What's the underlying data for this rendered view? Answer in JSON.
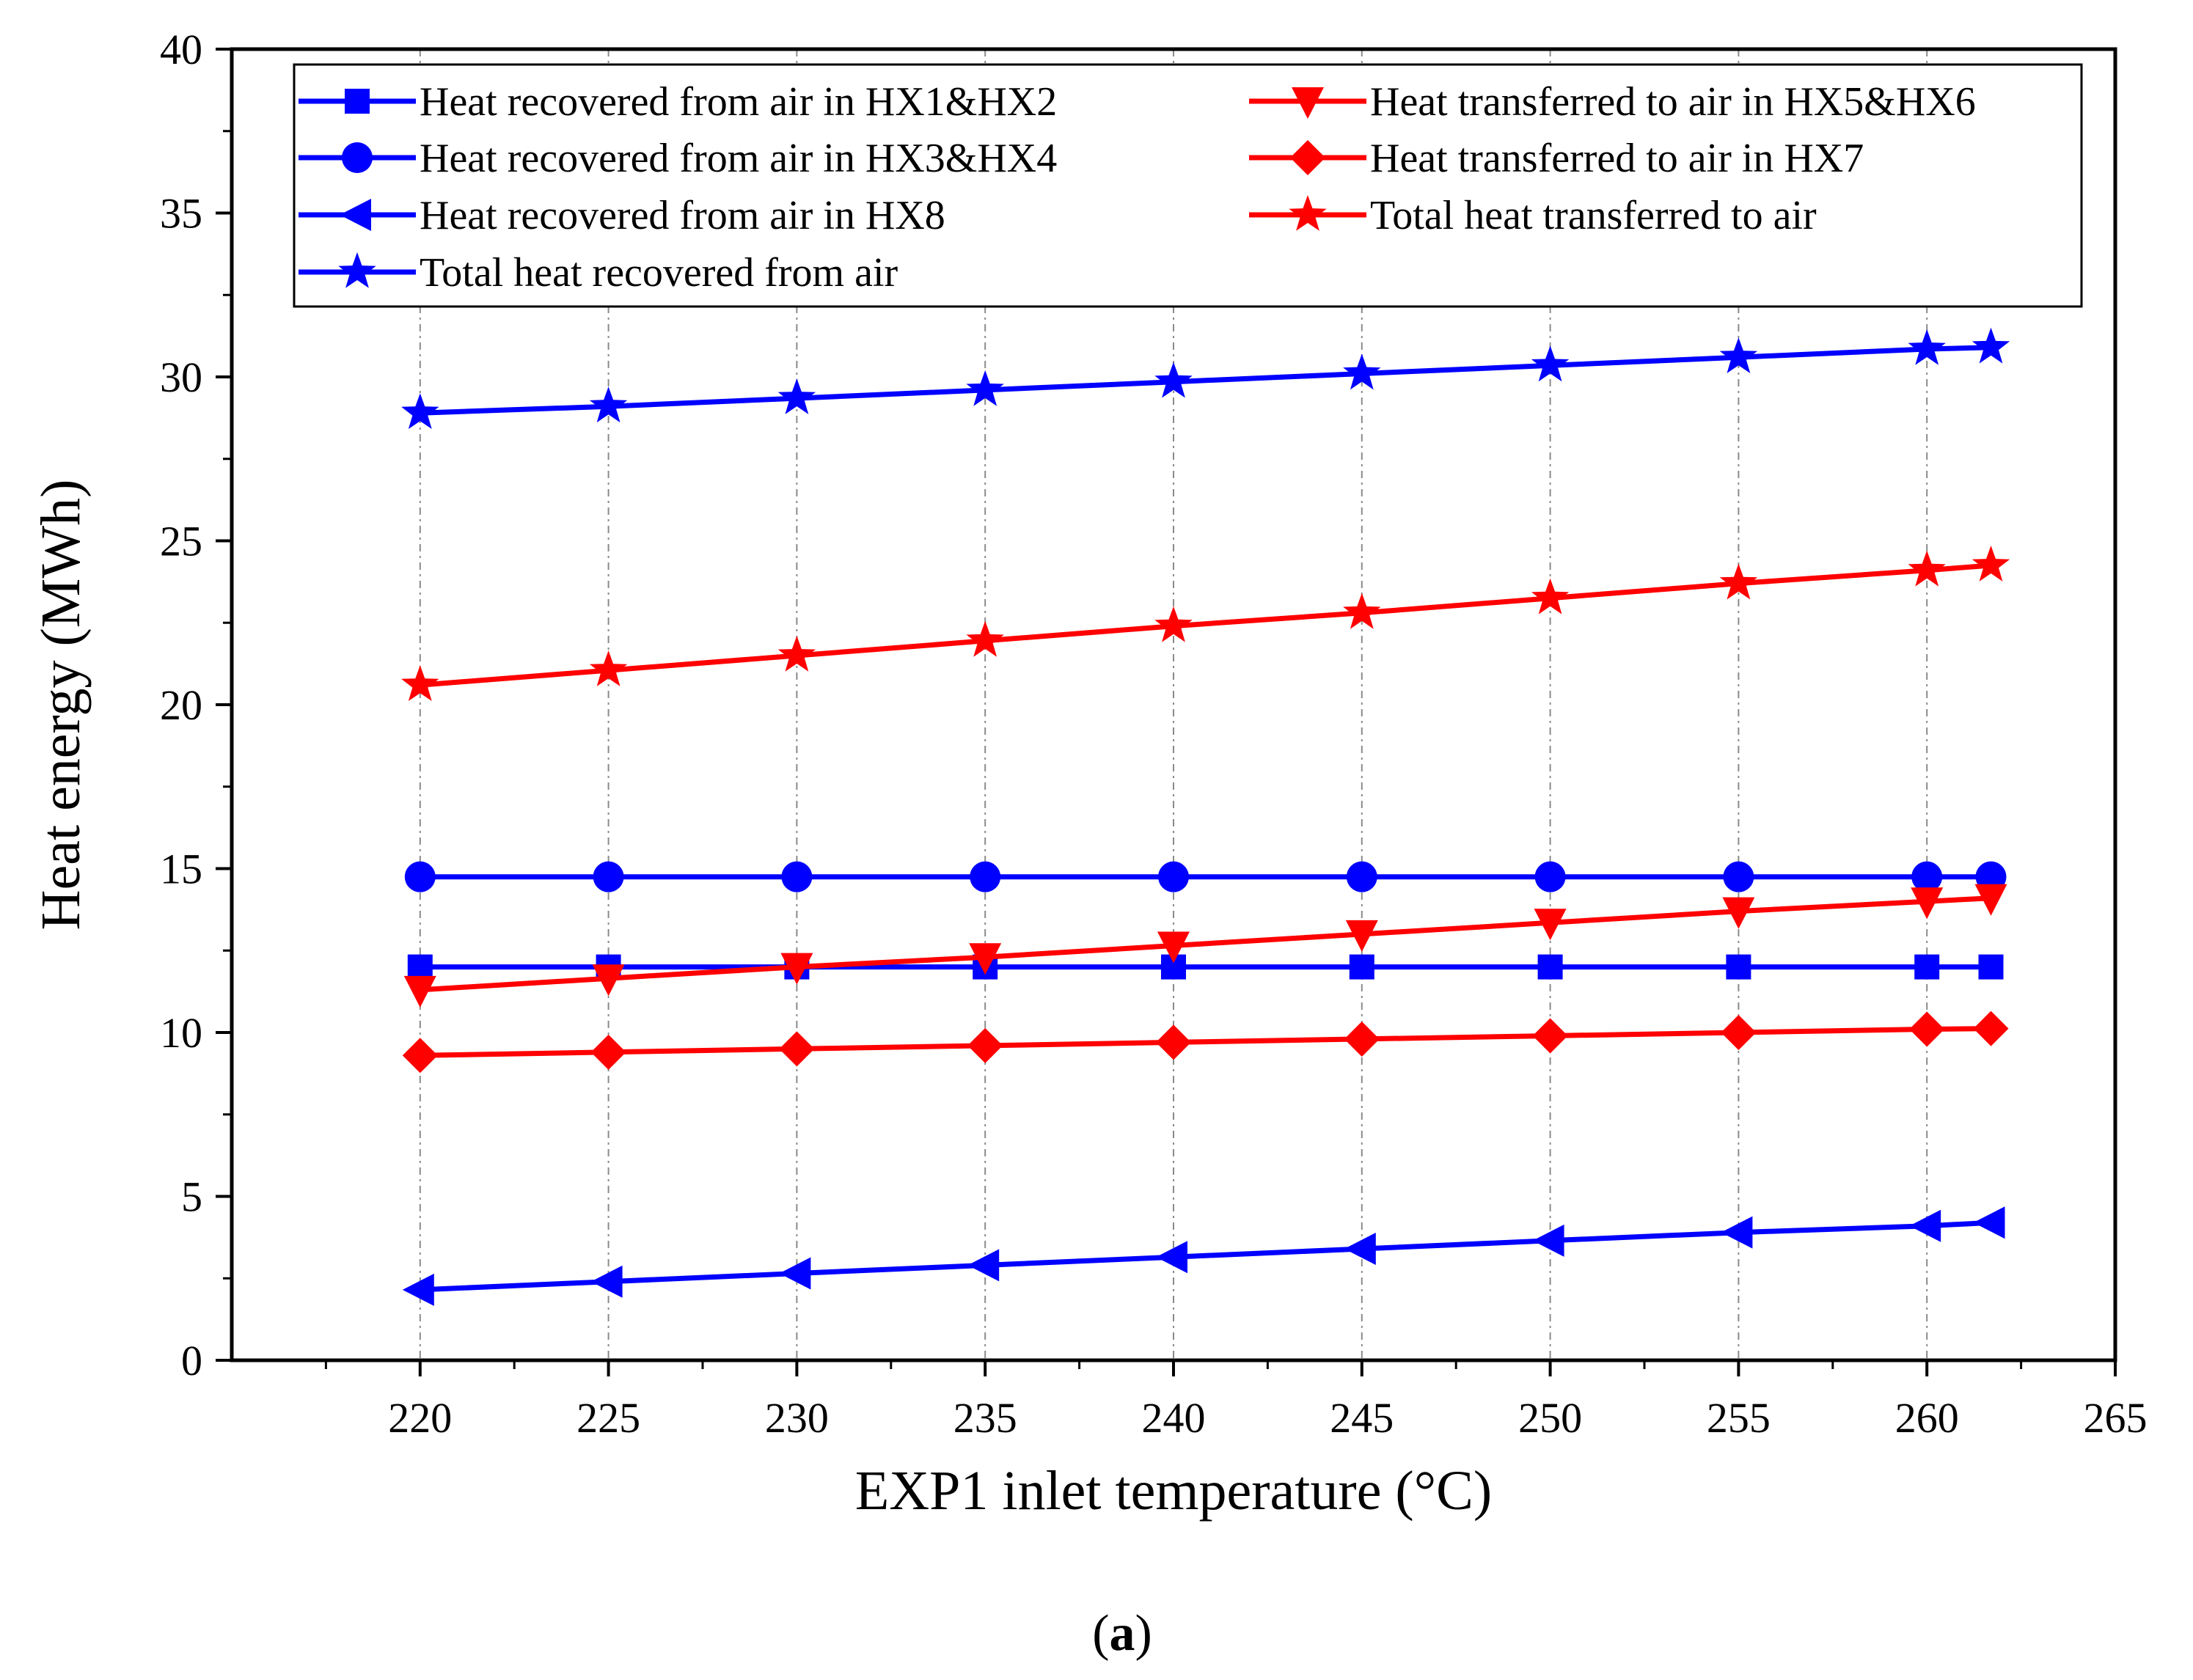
{
  "chart_data": {
    "type": "line",
    "title": "",
    "xlabel": "EXP1 inlet temperature (°C)",
    "ylabel": "Heat energy (MWh)",
    "xlim": [
      215,
      265
    ],
    "ylim": [
      0,
      40
    ],
    "xticks": [
      "220",
      "225",
      "230",
      "235",
      "240",
      "245",
      "250",
      "255",
      "260",
      "265"
    ],
    "yticks": [
      "0",
      "5",
      "10",
      "15",
      "20",
      "25",
      "30",
      "35",
      "40"
    ],
    "grid": "vertical dashed at x ticks",
    "legend_position": "top",
    "x": [
      220,
      225,
      230,
      235,
      240,
      245,
      250,
      255,
      260,
      261.7
    ],
    "series": [
      {
        "name": "Heat recovered from air in HX1&HX2",
        "color": "#0000ff",
        "marker": "square",
        "values": [
          12.0,
          12.0,
          12.0,
          12.0,
          12.0,
          12.0,
          12.0,
          12.0,
          12.0,
          12.0
        ]
      },
      {
        "name": "Heat recovered from air in HX3&HX4",
        "color": "#0000ff",
        "marker": "circle",
        "values": [
          14.75,
          14.75,
          14.75,
          14.75,
          14.75,
          14.75,
          14.75,
          14.75,
          14.75,
          14.75
        ]
      },
      {
        "name": "Heat recovered from air in HX8",
        "color": "#0000ff",
        "marker": "triangle-left",
        "values": [
          2.15,
          2.4,
          2.65,
          2.9,
          3.15,
          3.4,
          3.65,
          3.9,
          4.1,
          4.2
        ]
      },
      {
        "name": "Total heat recovered from air",
        "color": "#0000ff",
        "marker": "star",
        "values": [
          28.9,
          29.1,
          29.35,
          29.6,
          29.85,
          30.1,
          30.35,
          30.6,
          30.85,
          30.9
        ]
      },
      {
        "name": "Heat transferred to air in HX5&HX6",
        "color": "#ff0000",
        "marker": "triangle-down",
        "values": [
          11.3,
          11.65,
          12.0,
          12.3,
          12.65,
          13.0,
          13.35,
          13.7,
          14.0,
          14.1
        ]
      },
      {
        "name": "Heat transferred to air in HX7",
        "color": "#ff0000",
        "marker": "diamond",
        "values": [
          9.3,
          9.4,
          9.5,
          9.6,
          9.7,
          9.8,
          9.9,
          10.0,
          10.1,
          10.12
        ]
      },
      {
        "name": "Total heat transferred to air",
        "color": "#ff0000",
        "marker": "star",
        "values": [
          20.6,
          21.05,
          21.5,
          21.95,
          22.4,
          22.8,
          23.25,
          23.7,
          24.1,
          24.25
        ]
      }
    ]
  },
  "caption": {
    "open": "(",
    "letter": "a",
    "close": ")"
  }
}
